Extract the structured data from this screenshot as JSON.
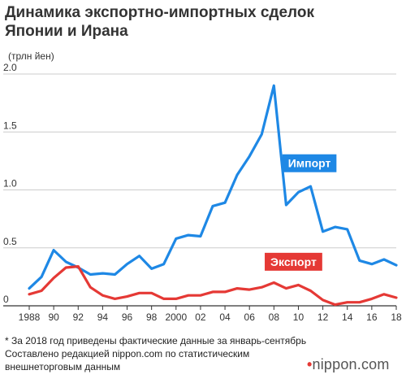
{
  "title_lines": [
    "Динамика экспортно-импортных сделок",
    "Японии и Ирана"
  ],
  "notes": [
    "* За 2018 год приведены фактические данные за январь-сентябрь",
    "Составлено редакцией nippon.com по статистическим",
    "внешнеторговым данным"
  ],
  "logo": {
    "dot": "•",
    "text": "nippon.com"
  },
  "colors": {
    "import": "#1e88e5",
    "export": "#e53935",
    "grid": "#cccccc",
    "axis": "#333333"
  },
  "chart_data": {
    "type": "line",
    "ylabel": "(трлн йен)",
    "ylim": [
      0,
      2.0
    ],
    "yticks": [
      0,
      0.5,
      1.0,
      1.5,
      2.0
    ],
    "ytick_labels": [
      "0",
      "0.5",
      "1.0",
      "1.5",
      "2.0"
    ],
    "xlim": [
      1988,
      2018
    ],
    "xticks": [
      1988,
      1990,
      1992,
      1994,
      1996,
      1998,
      2000,
      2002,
      2004,
      2006,
      2008,
      2010,
      2012,
      2014,
      2016,
      2018
    ],
    "xtick_labels": [
      "1988",
      "90",
      "92",
      "94",
      "96",
      "98",
      "2000",
      "02",
      "04",
      "06",
      "08",
      "10",
      "12",
      "14",
      "16",
      "18"
    ],
    "grid": true,
    "x": [
      1988,
      1989,
      1990,
      1991,
      1992,
      1993,
      1994,
      1995,
      1996,
      1997,
      1998,
      1999,
      2000,
      2001,
      2002,
      2003,
      2004,
      2005,
      2006,
      2007,
      2008,
      2009,
      2010,
      2011,
      2012,
      2013,
      2014,
      2015,
      2016,
      2017,
      2018
    ],
    "series": [
      {
        "name": "Импорт",
        "color": "#1e88e5",
        "label_year": 2010.9,
        "label_value": 1.23,
        "values": [
          0.15,
          0.25,
          0.48,
          0.38,
          0.33,
          0.27,
          0.28,
          0.27,
          0.36,
          0.43,
          0.32,
          0.36,
          0.58,
          0.61,
          0.6,
          0.86,
          0.89,
          1.13,
          1.29,
          1.48,
          1.9,
          0.87,
          0.98,
          1.03,
          0.64,
          0.68,
          0.66,
          0.39,
          0.36,
          0.4,
          0.35
        ]
      },
      {
        "name": "Экспорт",
        "color": "#e53935",
        "label_year": 2009.6,
        "label_value": 0.38,
        "values": [
          0.1,
          0.13,
          0.24,
          0.33,
          0.34,
          0.16,
          0.09,
          0.06,
          0.08,
          0.11,
          0.11,
          0.06,
          0.06,
          0.09,
          0.09,
          0.12,
          0.12,
          0.15,
          0.14,
          0.16,
          0.2,
          0.15,
          0.18,
          0.13,
          0.05,
          0.01,
          0.03,
          0.03,
          0.06,
          0.1,
          0.07
        ]
      }
    ]
  }
}
